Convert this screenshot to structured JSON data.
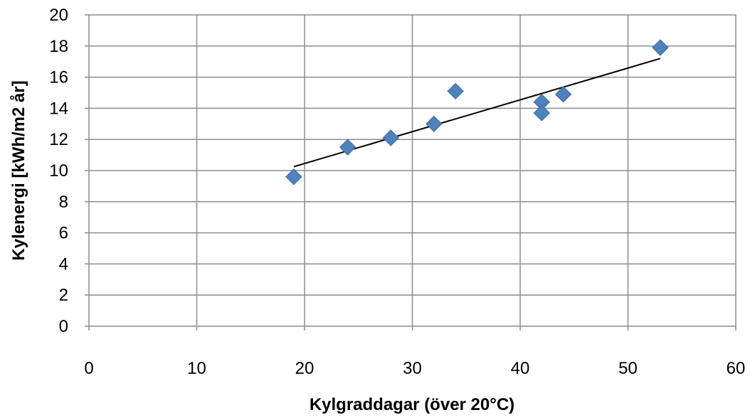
{
  "chart_data": {
    "type": "scatter",
    "title": "",
    "xlabel": "Kylgraddagar  (över 20°C)",
    "ylabel": "Kylenergi [kWh/m2 år]",
    "xlim": [
      0,
      60
    ],
    "ylim": [
      0,
      20
    ],
    "x_ticks": [
      0,
      10,
      20,
      30,
      40,
      50,
      60
    ],
    "y_ticks": [
      0,
      2,
      4,
      6,
      8,
      10,
      12,
      14,
      16,
      18,
      20
    ],
    "grid": true,
    "legend": "none",
    "series": [
      {
        "marker": "diamond",
        "color": "#4F81BD",
        "points": [
          {
            "x": 19,
            "y": 9.6
          },
          {
            "x": 24,
            "y": 11.5
          },
          {
            "x": 28,
            "y": 12.1
          },
          {
            "x": 32,
            "y": 13.0
          },
          {
            "x": 34,
            "y": 15.1
          },
          {
            "x": 42,
            "y": 14.4
          },
          {
            "x": 42,
            "y": 13.7
          },
          {
            "x": 44,
            "y": 14.9
          },
          {
            "x": 53,
            "y": 17.9
          }
        ]
      }
    ],
    "trendline": {
      "type": "linear",
      "color": "#000000",
      "start": {
        "x": 19,
        "y": 10.25
      },
      "end": {
        "x": 53,
        "y": 17.2
      }
    },
    "colors": {
      "grid": "#8C8C8C",
      "marker": "#4F81BD",
      "trendline": "#000000"
    }
  }
}
